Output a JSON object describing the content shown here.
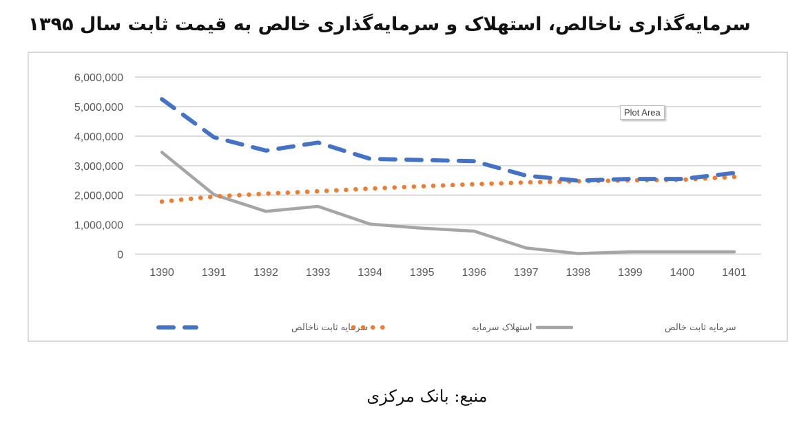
{
  "title": "سرمایه‌گذاری ناخالص، استهلاک و سرمایه‌گذاری خالص به قیمت ثابت سال ۱۳۹۵",
  "tooltip": "Plot Area",
  "source": "منبع: بانک مرکزی",
  "colors": {
    "gross": "#4472C4",
    "depreciation": "#ED7D31",
    "net": "#A5A5A5",
    "grid": "#D9D9D9",
    "border": "#D9D9D9"
  },
  "chart_data": {
    "type": "line",
    "title": "سرمایه‌گذاری ناخالص، استهلاک و سرمایه‌گذاری خالص به قیمت ثابت سال ۱۳۹۵",
    "xlabel": "",
    "ylabel": "",
    "x": [
      "1390",
      "1391",
      "1392",
      "1393",
      "1394",
      "1395",
      "1396",
      "1397",
      "1398",
      "1399",
      "1400",
      "1401"
    ],
    "yticks": [
      "0",
      "1,000,000",
      "2,000,000",
      "3,000,000",
      "4,000,000",
      "5,000,000",
      "6,000,000"
    ],
    "ylim": [
      0,
      6000000
    ],
    "grid": true,
    "legend_position": "bottom",
    "series": [
      {
        "name": "سرمایه ثابت ناخالص",
        "style": "dashed",
        "values": [
          5250000,
          3960000,
          3510000,
          3780000,
          3230000,
          3190000,
          3150000,
          2660000,
          2490000,
          2550000,
          2550000,
          2750000
        ]
      },
      {
        "name": "استهلاک سرمایه",
        "style": "dotted",
        "values": [
          1780000,
          1950000,
          2050000,
          2130000,
          2220000,
          2300000,
          2370000,
          2430000,
          2470000,
          2500000,
          2520000,
          2620000
        ]
      },
      {
        "name": "سرمایه ثابت خالص",
        "style": "solid",
        "values": [
          3450000,
          2020000,
          1450000,
          1620000,
          1020000,
          880000,
          780000,
          210000,
          20000,
          80000,
          80000,
          80000
        ]
      }
    ]
  }
}
